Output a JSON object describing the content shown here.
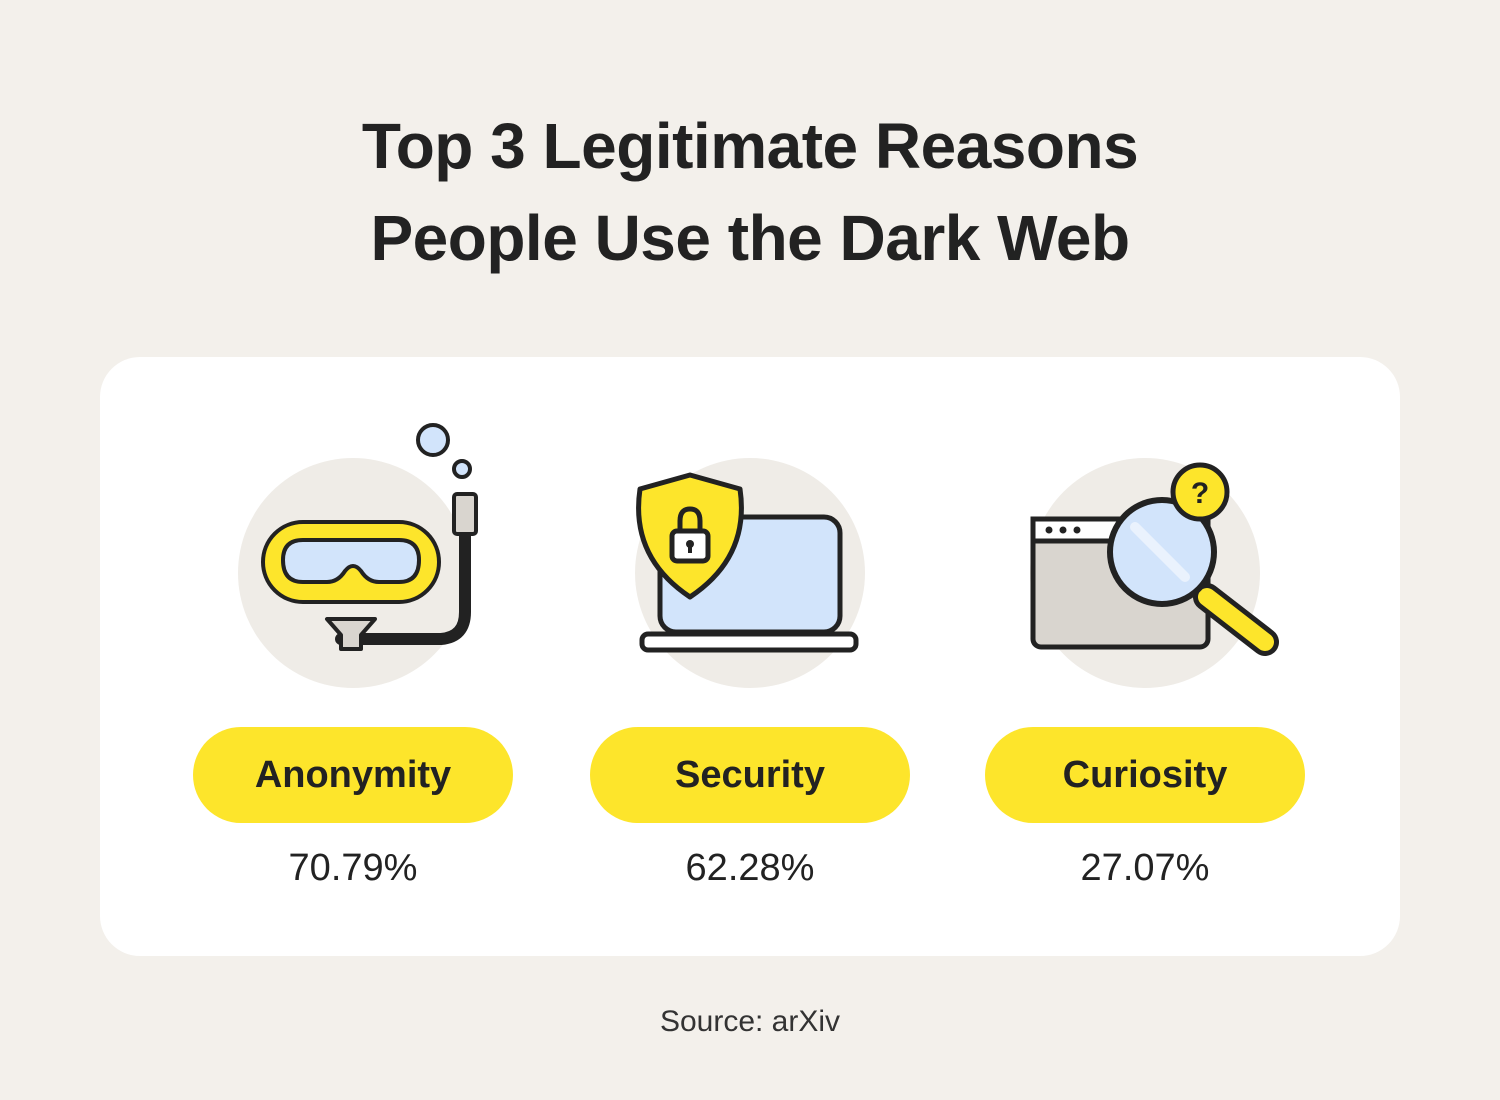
{
  "title": {
    "line1": "Top 3 Legitimate Reasons",
    "line2": "People Use the Dark Web"
  },
  "colors": {
    "background": "#f3f0eb",
    "card": "#ffffff",
    "accent_yellow": "#fde52b",
    "icon_circle": "#efece7",
    "icon_blue": "#d2e4fb",
    "text": "#222222"
  },
  "reasons": [
    {
      "label": "Anonymity",
      "percent": "70.79%",
      "icon": "snorkel-mask-icon"
    },
    {
      "label": "Security",
      "percent": "62.28%",
      "icon": "shield-laptop-icon"
    },
    {
      "label": "Curiosity",
      "percent": "27.07%",
      "icon": "browser-magnifier-question-icon"
    }
  ],
  "source": "Source: arXiv"
}
